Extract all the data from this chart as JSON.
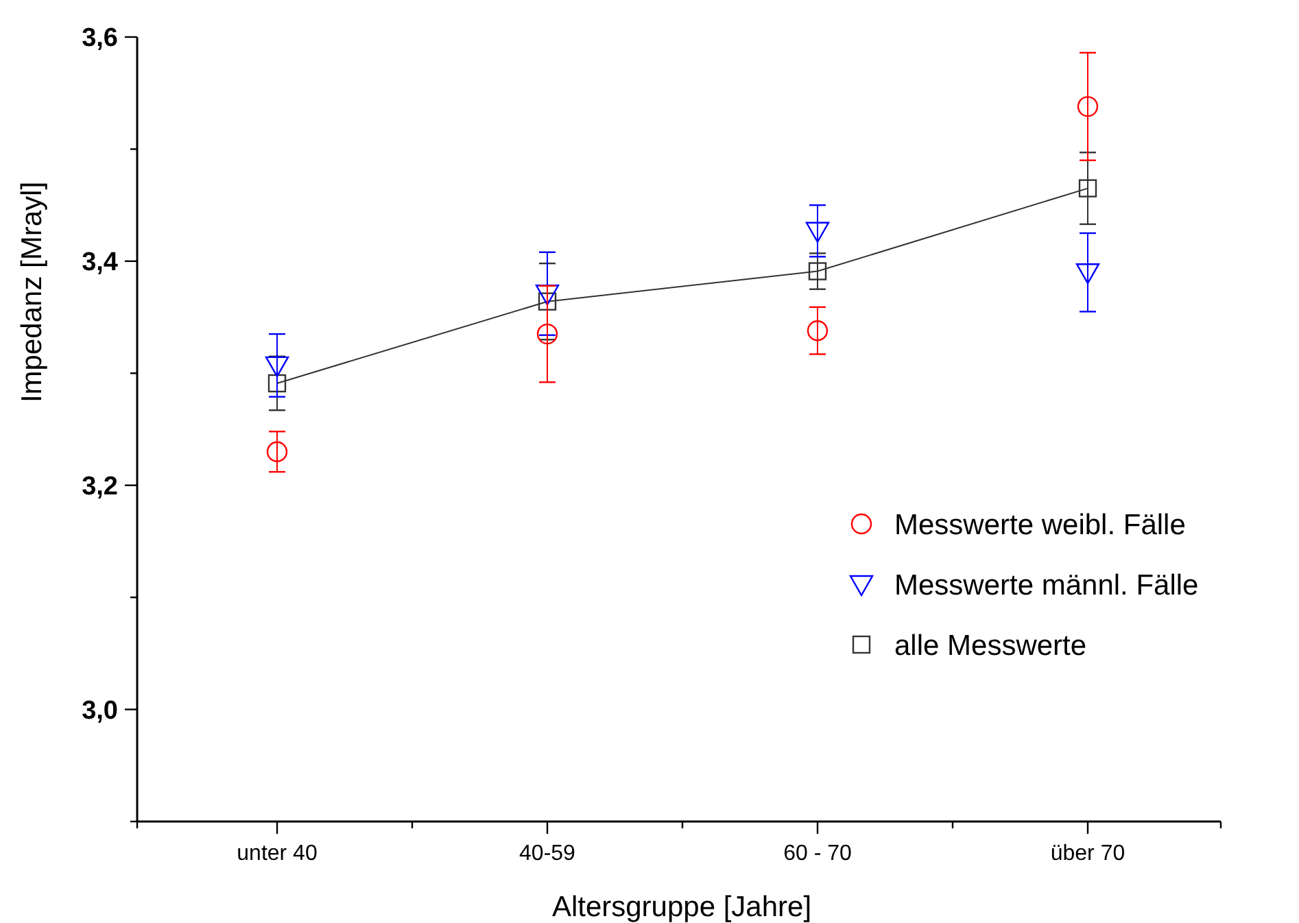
{
  "chart_data": {
    "type": "scatter",
    "xlabel": "Altersgruppe [Jahre]",
    "ylabel": "Impedanz [Mrayl]",
    "categories": [
      "unter 40",
      "40-59",
      "60 - 70",
      "über 70"
    ],
    "series": [
      {
        "name": "Messwerte weibl. Fälle",
        "color": "#ff0000",
        "marker": "circle",
        "values": [
          3.23,
          3.335,
          3.338,
          3.538
        ],
        "errors": [
          0.018,
          0.043,
          0.021,
          0.048
        ]
      },
      {
        "name": "Messwerte männl. Fälle",
        "color": "#0000ff",
        "marker": "triangle",
        "values": [
          3.307,
          3.371,
          3.427,
          3.39
        ],
        "errors": [
          0.028,
          0.037,
          0.023,
          0.035
        ]
      },
      {
        "name": "alle Messwerte",
        "type": "line",
        "color": "#333333",
        "marker": "square",
        "values": [
          3.291,
          3.364,
          3.391,
          3.465
        ],
        "errors": [
          0.024,
          0.034,
          0.016,
          0.032
        ]
      }
    ],
    "ylim": [
      2.9,
      3.6
    ],
    "yticks": [
      {
        "value": 2.9,
        "label": null
      },
      {
        "value": 3.0,
        "label": "3,0"
      },
      {
        "value": 3.1,
        "label": null
      },
      {
        "value": 3.2,
        "label": "3,2"
      },
      {
        "value": 3.3,
        "label": null
      },
      {
        "value": 3.4,
        "label": "3,4"
      },
      {
        "value": 3.5,
        "label": null
      },
      {
        "value": 3.6,
        "label": "3,6"
      }
    ],
    "grid": false,
    "legend": "bottom right"
  }
}
